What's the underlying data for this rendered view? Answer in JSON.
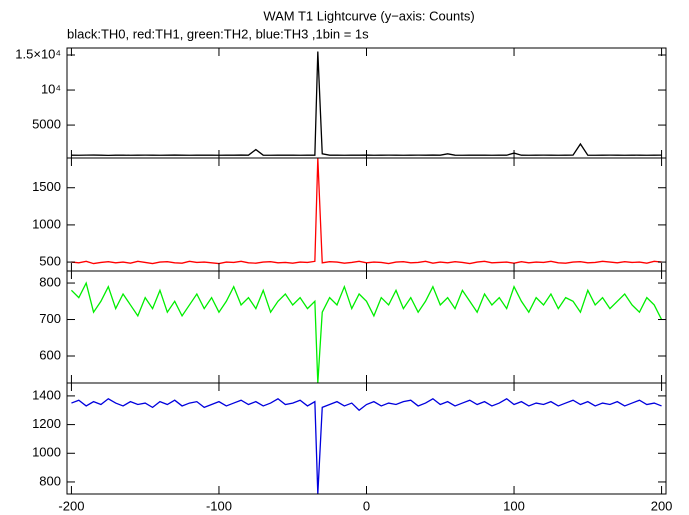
{
  "chart_data": {
    "type": "line",
    "title": "WAM T1 Lightcurve (y−axis: Counts)",
    "subtitle": "black:TH0, red:TH1, green:TH2, blue:TH3 ,1bin = 1s",
    "x": [
      -200,
      -195,
      -190,
      -185,
      -180,
      -175,
      -170,
      -165,
      -160,
      -155,
      -150,
      -145,
      -140,
      -135,
      -130,
      -125,
      -120,
      -115,
      -110,
      -105,
      -100,
      -95,
      -90,
      -85,
      -80,
      -75,
      -70,
      -65,
      -60,
      -55,
      -50,
      -45,
      -40,
      -35,
      -33,
      -30,
      -25,
      -20,
      -15,
      -10,
      -5,
      0,
      5,
      10,
      15,
      20,
      25,
      30,
      35,
      40,
      45,
      50,
      55,
      60,
      65,
      70,
      75,
      80,
      85,
      90,
      95,
      100,
      105,
      110,
      115,
      120,
      125,
      130,
      135,
      140,
      145,
      150,
      155,
      160,
      165,
      170,
      175,
      180,
      185,
      190,
      195,
      200
    ],
    "xlim": [
      -203,
      203
    ],
    "xticks": [
      -200,
      -100,
      0,
      100,
      200
    ],
    "panels": [
      {
        "color": "#000000",
        "ylim": [
          300,
          16000
        ],
        "yticks": [
          5000,
          {
            "value": 10000,
            "label": "10⁴"
          },
          {
            "value": 15000,
            "label": "1.5×10⁴"
          }
        ],
        "values": [
          700,
          690,
          710,
          720,
          700,
          680,
          700,
          710,
          690,
          700,
          710,
          700,
          690,
          700,
          720,
          700,
          690,
          710,
          700,
          700,
          690,
          710,
          700,
          720,
          700,
          1500,
          700,
          690,
          710,
          700,
          700,
          690,
          710,
          700,
          15500,
          900,
          700,
          710,
          690,
          700,
          700,
          720,
          690,
          700,
          710,
          700,
          690,
          700,
          710,
          700,
          720,
          700,
          900,
          700,
          690,
          710,
          700,
          700,
          690,
          710,
          700,
          1000,
          700,
          690,
          700,
          710,
          700,
          690,
          700,
          710,
          2300,
          700,
          690,
          700,
          710,
          700,
          690,
          710,
          700,
          690,
          700,
          710
        ]
      },
      {
        "color": "#ff0000",
        "ylim": [
          380,
          1900
        ],
        "yticks": [
          500,
          1000,
          1500
        ],
        "values": [
          500,
          490,
          510,
          480,
          495,
          505,
          490,
          500,
          485,
          510,
          495,
          480,
          500,
          505,
          490,
          485,
          510,
          495,
          500,
          490,
          480,
          500,
          495,
          510,
          490,
          485,
          500,
          505,
          490,
          495,
          485,
          500,
          495,
          510,
          1900,
          490,
          505,
          500,
          485,
          495,
          510,
          490,
          500,
          495,
          480,
          500,
          505,
          490,
          495,
          510,
          485,
          500,
          490,
          505,
          495,
          480,
          500,
          510,
          490,
          495,
          500,
          485,
          505,
          490,
          500,
          495,
          510,
          490,
          485,
          500,
          505,
          490,
          495,
          510,
          500,
          490,
          505,
          495,
          500,
          485,
          510,
          500
        ]
      },
      {
        "color": "#00ee00",
        "ylim": [
          526,
          833
        ],
        "yticks": [
          600,
          700,
          800
        ],
        "values": [
          780,
          760,
          800,
          720,
          750,
          790,
          730,
          770,
          740,
          710,
          760,
          730,
          780,
          720,
          750,
          710,
          740,
          770,
          730,
          760,
          720,
          750,
          790,
          740,
          760,
          730,
          780,
          720,
          750,
          770,
          740,
          760,
          730,
          750,
          526,
          720,
          760,
          740,
          790,
          730,
          770,
          750,
          710,
          760,
          740,
          780,
          730,
          760,
          720,
          750,
          790,
          740,
          760,
          730,
          780,
          750,
          720,
          770,
          740,
          760,
          730,
          790,
          750,
          720,
          760,
          740,
          770,
          730,
          760,
          750,
          720,
          780,
          740,
          760,
          730,
          750,
          770,
          740,
          720,
          760,
          740,
          700
        ]
      },
      {
        "color": "#0000dd",
        "ylim": [
          716,
          1490
        ],
        "yticks": [
          800,
          1000,
          1200,
          1400
        ],
        "values": [
          1350,
          1370,
          1330,
          1360,
          1340,
          1380,
          1350,
          1330,
          1360,
          1340,
          1350,
          1320,
          1360,
          1340,
          1370,
          1330,
          1350,
          1360,
          1320,
          1340,
          1360,
          1330,
          1350,
          1370,
          1340,
          1360,
          1330,
          1350,
          1380,
          1340,
          1350,
          1370,
          1330,
          1360,
          716,
          1320,
          1340,
          1360,
          1330,
          1350,
          1300,
          1340,
          1360,
          1330,
          1350,
          1340,
          1360,
          1370,
          1330,
          1350,
          1380,
          1340,
          1360,
          1330,
          1350,
          1370,
          1340,
          1360,
          1330,
          1350,
          1380,
          1340,
          1360,
          1330,
          1350,
          1340,
          1360,
          1330,
          1350,
          1370,
          1340,
          1360,
          1330,
          1350,
          1340,
          1360,
          1330,
          1350,
          1370,
          1340,
          1350,
          1330
        ]
      }
    ]
  }
}
